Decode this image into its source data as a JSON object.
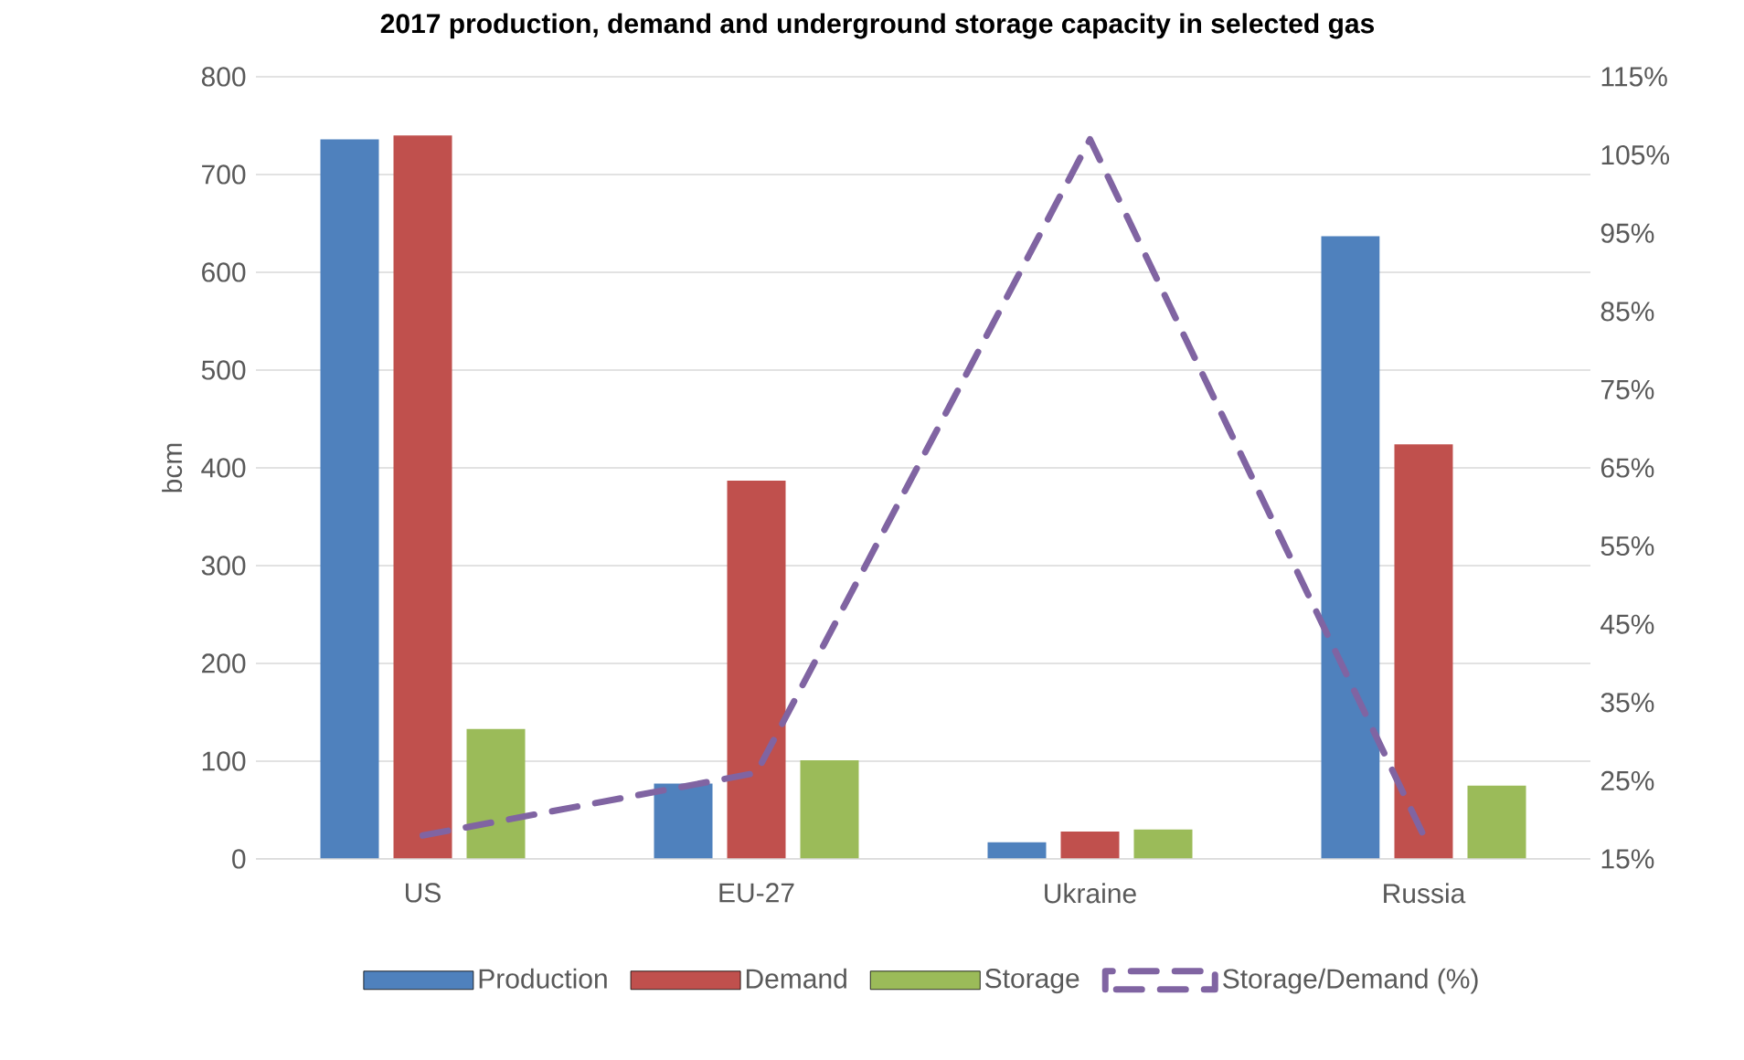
{
  "chart_data": {
    "type": "bar",
    "title": "2017 production, demand and underground storage capacity in selected gas",
    "ylabel": "bcm",
    "categories": [
      "US",
      "EU-27",
      "Ukraine",
      "Russia"
    ],
    "series": [
      {
        "name": "Production",
        "color": "#4f81bd",
        "values": [
          736,
          77,
          17,
          637
        ]
      },
      {
        "name": "Demand",
        "color": "#c0504d",
        "values": [
          740,
          387,
          28,
          424
        ]
      },
      {
        "name": "Storage",
        "color": "#9bbb59",
        "values": [
          133,
          101,
          30,
          75
        ]
      },
      {
        "name": "Storage/Demand (%)",
        "color": "#8064a2",
        "type": "line",
        "axis": "y2",
        "line_style": "dashed",
        "values": [
          18,
          26,
          107,
          18
        ]
      }
    ],
    "ylim": [
      0,
      800
    ],
    "yticks": [
      0,
      100,
      200,
      300,
      400,
      500,
      600,
      700,
      800
    ],
    "y2lim": [
      15,
      115
    ],
    "y2ticks": [
      {
        "value": 15,
        "label": "15%"
      },
      {
        "value": 25,
        "label": "25%"
      },
      {
        "value": 35,
        "label": "35%"
      },
      {
        "value": 45,
        "label": "45%"
      },
      {
        "value": 55,
        "label": "55%"
      },
      {
        "value": 65,
        "label": "65%"
      },
      {
        "value": 75,
        "label": "75%"
      },
      {
        "value": 85,
        "label": "85%"
      },
      {
        "value": 95,
        "label": "95%"
      },
      {
        "value": 105,
        "label": "105%"
      },
      {
        "value": 115,
        "label": "115%"
      }
    ],
    "grid": "y",
    "legend": "bottom"
  }
}
